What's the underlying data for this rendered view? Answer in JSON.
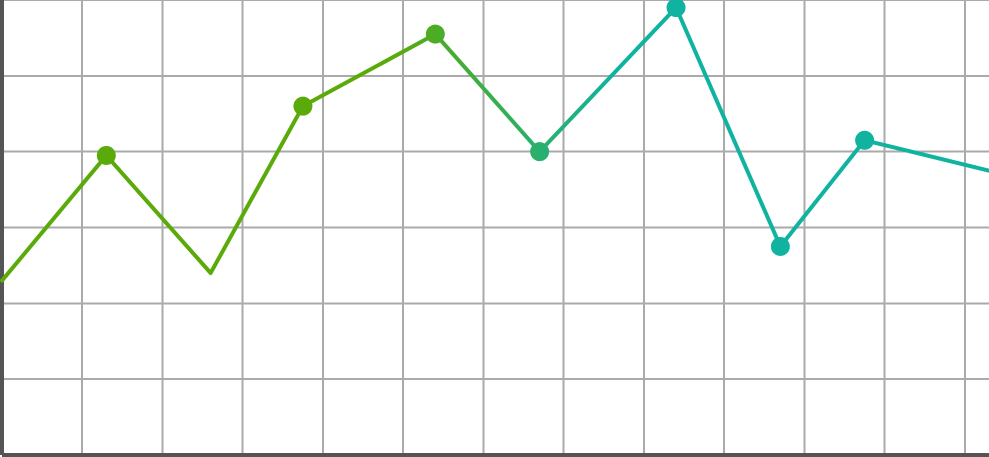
{
  "chart_data": {
    "type": "line",
    "title": "",
    "xlabel": "",
    "ylabel": "",
    "grid": true,
    "legend": "none",
    "x": [
      -1.0,
      0.3,
      1.6,
      2.75,
      4.4,
      5.7,
      7.4,
      8.7,
      9.75,
      11.3
    ],
    "xlim": [
      -1.0,
      11.3
    ],
    "ylim": [
      0,
      6
    ],
    "series": [
      {
        "values": [
          2.3,
          3.95,
          2.4,
          4.6,
          5.55,
          4.0,
          5.9,
          2.75,
          4.15,
          3.75
        ],
        "hidden_markers": [
          0,
          2,
          9
        ]
      }
    ],
    "colors": {
      "line_start": "#5aaa0a",
      "line_end": "#10b3a0",
      "grid": "#aaaaaa",
      "axis": "#555555"
    }
  }
}
